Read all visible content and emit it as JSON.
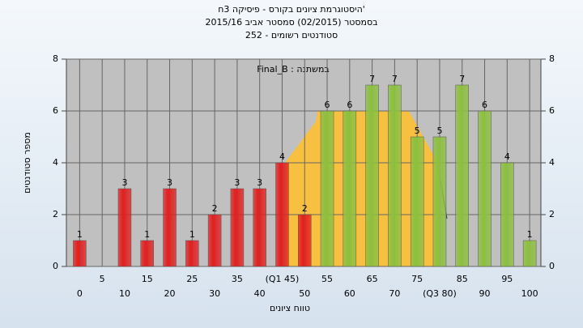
{
  "chart_data": {
    "type": "bar",
    "title": "'היסטוגרמת ציונים בקורס - פיסיקה 3ח",
    "subtitle": "בסמסטר  (02/2015)  סמסטר אביב 2015/16",
    "subtitle2": "סטודנטים רשומים - 252",
    "annotation": "במשתנה : Final_B",
    "x_label": "טווח ציונים",
    "y_label": "מספר סטודנטים",
    "categories": [
      "0",
      "5",
      "10",
      "15",
      "20",
      "25",
      "30",
      "35",
      "40",
      "(Q1 45)",
      "50",
      "55",
      "60",
      "65",
      "70",
      "75",
      "(Q3 80)",
      "85",
      "90",
      "95",
      "100"
    ],
    "values": [
      1,
      0,
      3,
      1,
      3,
      1,
      2,
      3,
      3,
      4,
      2,
      6,
      6,
      7,
      7,
      5,
      5,
      7,
      6,
      4,
      1
    ],
    "colors": [
      "#e02020",
      "#e02020",
      "#e02020",
      "#e02020",
      "#e02020",
      "#e02020",
      "#e02020",
      "#e02020",
      "#e02020",
      "#e02020",
      "#e02020",
      "#8cc040",
      "#8cc040",
      "#8cc040",
      "#8cc040",
      "#8cc040",
      "#8cc040",
      "#8cc040",
      "#8cc040",
      "#8cc040",
      "#8cc040"
    ],
    "ylim": [
      0,
      8
    ],
    "yticks": [
      0,
      2,
      4,
      6,
      8
    ],
    "y2lim": [
      0,
      8
    ],
    "y2ticks": [
      0,
      2,
      4,
      6,
      8
    ],
    "grid": true
  }
}
